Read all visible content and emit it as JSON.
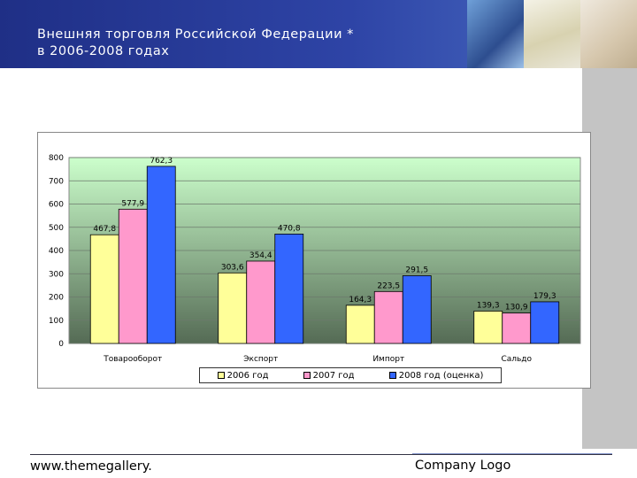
{
  "header": {
    "title_line1": "Внешняя торговля Российской Федерации *",
    "title_line2": "в 2006-2008 годах"
  },
  "footer": {
    "website": "www.themegallery.",
    "logo": "Company Logo"
  },
  "chart_data": {
    "type": "bar",
    "categories": [
      "Товарооборот",
      "Экспорт",
      "Импорт",
      "Сальдо"
    ],
    "series": [
      {
        "name": "2006 год",
        "values": [
          467.8,
          303.6,
          164.3,
          139.3
        ],
        "labels": [
          "467,8",
          "303,6",
          "164,3",
          "139,3"
        ],
        "color": "#ffff99"
      },
      {
        "name": "2007 год",
        "values": [
          577.9,
          354.4,
          223.5,
          130.9
        ],
        "labels": [
          "577,9",
          "354,4",
          "223,5",
          "130,9"
        ],
        "color": "#ff99cc"
      },
      {
        "name": "2008 год (оценка)",
        "values": [
          762.3,
          470.8,
          291.5,
          179.3
        ],
        "labels": [
          "762,3",
          "470,8",
          "291,5",
          "179,3"
        ],
        "color": "#3366ff"
      }
    ],
    "yticks": [
      "0",
      "100",
      "200",
      "300",
      "400",
      "500",
      "600",
      "700",
      "800"
    ],
    "ylim": [
      0,
      800
    ],
    "grid": true,
    "legend": "bottom",
    "plot_background": [
      "#ccffcc",
      "#556b55"
    ]
  }
}
